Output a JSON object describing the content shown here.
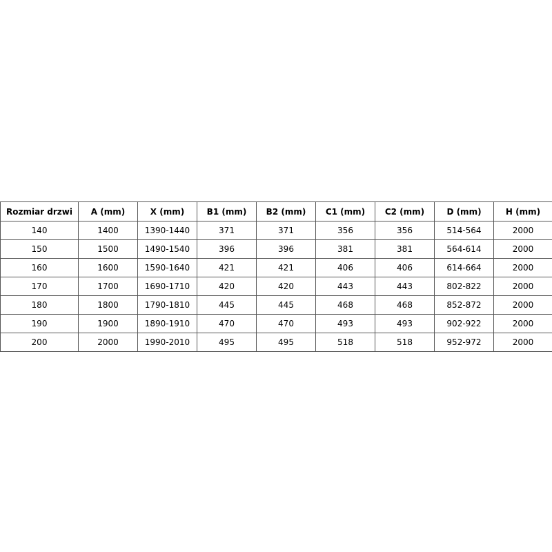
{
  "table": {
    "header": [
      "Rozmiar drzwi",
      "A (mm)",
      "X (mm)",
      "B1 (mm)",
      "B2 (mm)",
      "C1 (mm)",
      "C2 (mm)",
      "D (mm)",
      "H (mm)"
    ],
    "rows": [
      [
        "140",
        "1400",
        "1390-1440",
        "371",
        "371",
        "356",
        "356",
        "514-564",
        "2000"
      ],
      [
        "150",
        "1500",
        "1490-1540",
        "396",
        "396",
        "381",
        "381",
        "564-614",
        "2000"
      ],
      [
        "160",
        "1600",
        "1590-1640",
        "421",
        "421",
        "406",
        "406",
        "614-664",
        "2000"
      ],
      [
        "170",
        "1700",
        "1690-1710",
        "420",
        "420",
        "443",
        "443",
        "802-822",
        "2000"
      ],
      [
        "180",
        "1800",
        "1790-1810",
        "445",
        "445",
        "468",
        "468",
        "852-872",
        "2000"
      ],
      [
        "190",
        "1900",
        "1890-1910",
        "470",
        "470",
        "493",
        "493",
        "902-922",
        "2000"
      ],
      [
        "200",
        "2000",
        "1990-2010",
        "495",
        "495",
        "518",
        "518",
        "952-972",
        "2000"
      ]
    ]
  }
}
